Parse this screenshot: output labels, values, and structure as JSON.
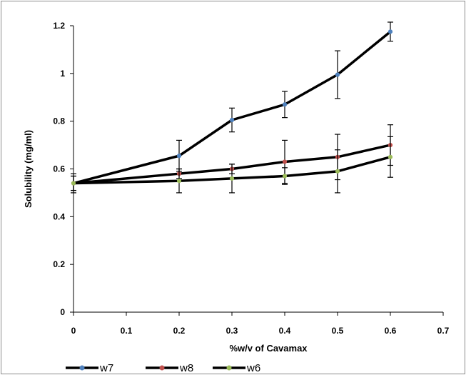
{
  "chart_data": {
    "type": "line",
    "xlabel": "%w/v of Cavamax",
    "ylabel": "Solubility (mg/ml)",
    "xlim": [
      0,
      0.7
    ],
    "ylim": [
      0,
      1.2
    ],
    "xticks": [
      0,
      0.1,
      0.2,
      0.3,
      0.4,
      0.5,
      0.6,
      0.7
    ],
    "yticks": [
      0,
      0.2,
      0.4,
      0.6,
      0.8,
      1,
      1.2
    ],
    "xtick_labels": [
      "0",
      "0.1",
      "0.2",
      "0.3",
      "0.4",
      "0.5",
      "0.6",
      "0.7"
    ],
    "ytick_labels": [
      "0",
      "0.2",
      "0.4",
      "0.6",
      "0.8",
      "1",
      "1.2"
    ],
    "grid": false,
    "legend_position": "bottom",
    "series": [
      {
        "name": "w7",
        "x": [
          0,
          0.2,
          0.3,
          0.4,
          0.5,
          0.6
        ],
        "y": [
          0.54,
          0.655,
          0.805,
          0.87,
          0.995,
          1.175
        ],
        "error": [
          0.04,
          0.065,
          0.05,
          0.055,
          0.1,
          0.04
        ],
        "marker_color": "#4f81bd"
      },
      {
        "name": "w8",
        "x": [
          0,
          0.2,
          0.3,
          0.4,
          0.5,
          0.6
        ],
        "y": [
          0.54,
          0.58,
          0.6,
          0.63,
          0.65,
          0.7
        ],
        "error": [
          0.03,
          0.02,
          0.02,
          0.09,
          0.095,
          0.085
        ],
        "marker_color": "#c0504d"
      },
      {
        "name": "w6",
        "x": [
          0,
          0.2,
          0.3,
          0.4,
          0.5,
          0.6
        ],
        "y": [
          0.54,
          0.55,
          0.56,
          0.57,
          0.59,
          0.65
        ],
        "error": [
          0.03,
          0.05,
          0.06,
          0.035,
          0.09,
          0.085
        ],
        "marker_color": "#9bbb59"
      }
    ],
    "line_color": "#000000"
  }
}
